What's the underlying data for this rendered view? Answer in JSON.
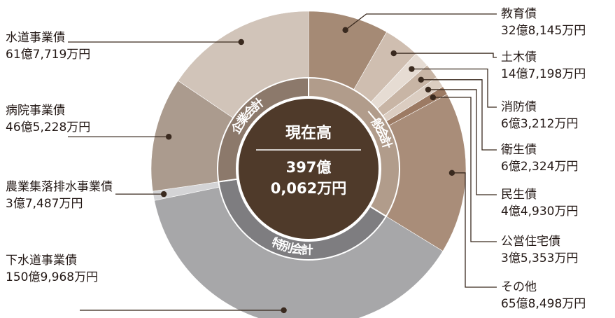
{
  "chart_data": {
    "type": "pie",
    "center": {
      "title": "現在高",
      "total_line1": "397億",
      "total_line2": "0,062万円"
    },
    "inner_ring": [
      {
        "name": "一般会計",
        "color": "#b19c8b"
      },
      {
        "name": "特別会計",
        "color": "#7e7d80"
      },
      {
        "name": "企業会計",
        "color": "#8c796b"
      }
    ],
    "slices": [
      {
        "name": "教育債",
        "value": 32.8145,
        "label": "32億8,145万円",
        "group": "一般会計",
        "color": "#a58a75"
      },
      {
        "name": "土木債",
        "value": 14.7198,
        "label": "14億7,198万円",
        "group": "一般会計",
        "color": "#cfbeb0"
      },
      {
        "name": "消防債",
        "value": 6.3212,
        "label": "6億3,212万円",
        "group": "一般会計",
        "color": "#e6dcd3"
      },
      {
        "name": "衛生債",
        "value": 6.2324,
        "label": "6億2,324万円",
        "group": "一般会計",
        "color": "#c8b5a5"
      },
      {
        "name": "民生債",
        "value": 4.493,
        "label": "4億4,930万円",
        "group": "一般会計",
        "color": "#dbcdc1"
      },
      {
        "name": "公営住宅債",
        "value": 3.5353,
        "label": "3億5,353万円",
        "group": "一般会計",
        "color": "#9c7a63"
      },
      {
        "name": "その他",
        "value": 65.8498,
        "label": "65億8,498万円",
        "group": "一般会計",
        "color": "#a98d79"
      },
      {
        "name": "下水道事業債",
        "value": 150.9968,
        "label": "150億9,968万円",
        "group": "特別会計",
        "color": "#a7a7a9"
      },
      {
        "name": "農業集落排水事業債",
        "value": 3.7487,
        "label": "3億7,487万円",
        "group": "特別会計",
        "color": "#d4d4d6"
      },
      {
        "name": "病院事業債",
        "value": 46.5228,
        "label": "46億5,228万円",
        "group": "企業会計",
        "color": "#ab9b8e"
      },
      {
        "name": "水道事業債",
        "value": 61.7719,
        "label": "61億7,719万円",
        "group": "企業会計",
        "color": "#d1c4b9"
      }
    ]
  }
}
